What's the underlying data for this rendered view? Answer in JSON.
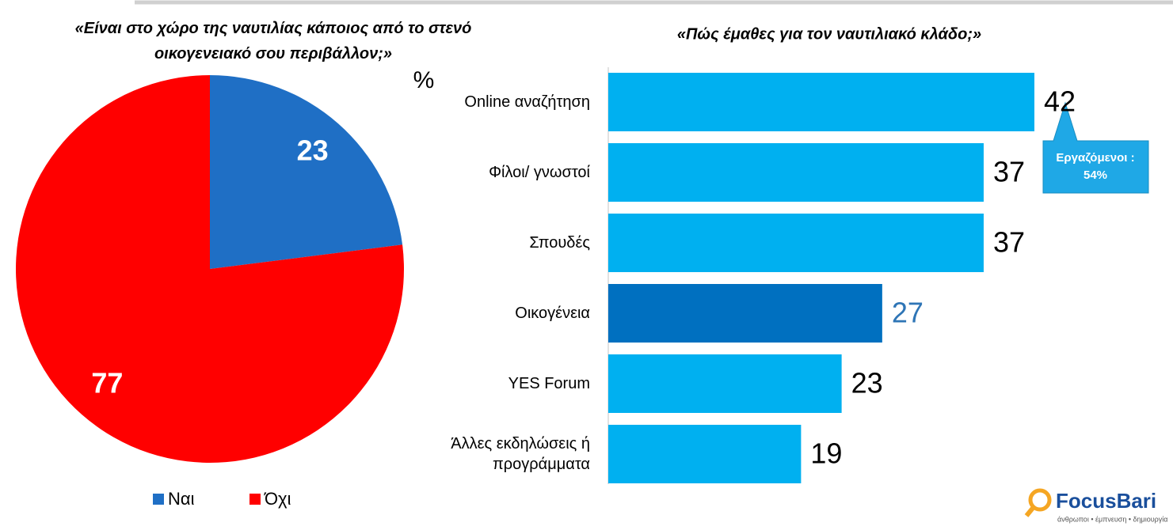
{
  "chart_data": [
    {
      "type": "pie",
      "title": "«Είναι στο χώρο της ναυτιλίας κάποιος από το στενό οικογενειακό σου περιβάλλον;»",
      "annotation": ";»",
      "categories": [
        "Ναι",
        "Όχι"
      ],
      "values": [
        23,
        77
      ],
      "colors": [
        "#1f6fc5",
        "#ff0000"
      ]
    },
    {
      "type": "hbar",
      "title": "«Πώς έμαθες για τον ναυτιλιακό κλάδο;»",
      "unit_label": "%",
      "categories": [
        "Online αναζήτηση",
        "Φίλοι/ γνωστοί",
        "Σπουδές",
        "Οικογένεια",
        "YES Forum",
        "Άλλες εκδηλώσεις ή προγράμματα"
      ],
      "values": [
        42,
        37,
        37,
        27,
        23,
        19
      ],
      "colors": [
        "#00b0f0",
        "#00b0f0",
        "#00b0f0",
        "#0070c0",
        "#00b0f0",
        "#00b0f0"
      ],
      "label_colors": [
        "#000000",
        "#000000",
        "#000000",
        "#2e75b6",
        "#000000",
        "#000000"
      ]
    }
  ],
  "callout": {
    "lines": [
      "Εργαζόμενοι :",
      "54%"
    ]
  },
  "logo": {
    "name": "FocusBari",
    "tagline": "άνθρωποι • έμπνευση • δημιουργία"
  }
}
